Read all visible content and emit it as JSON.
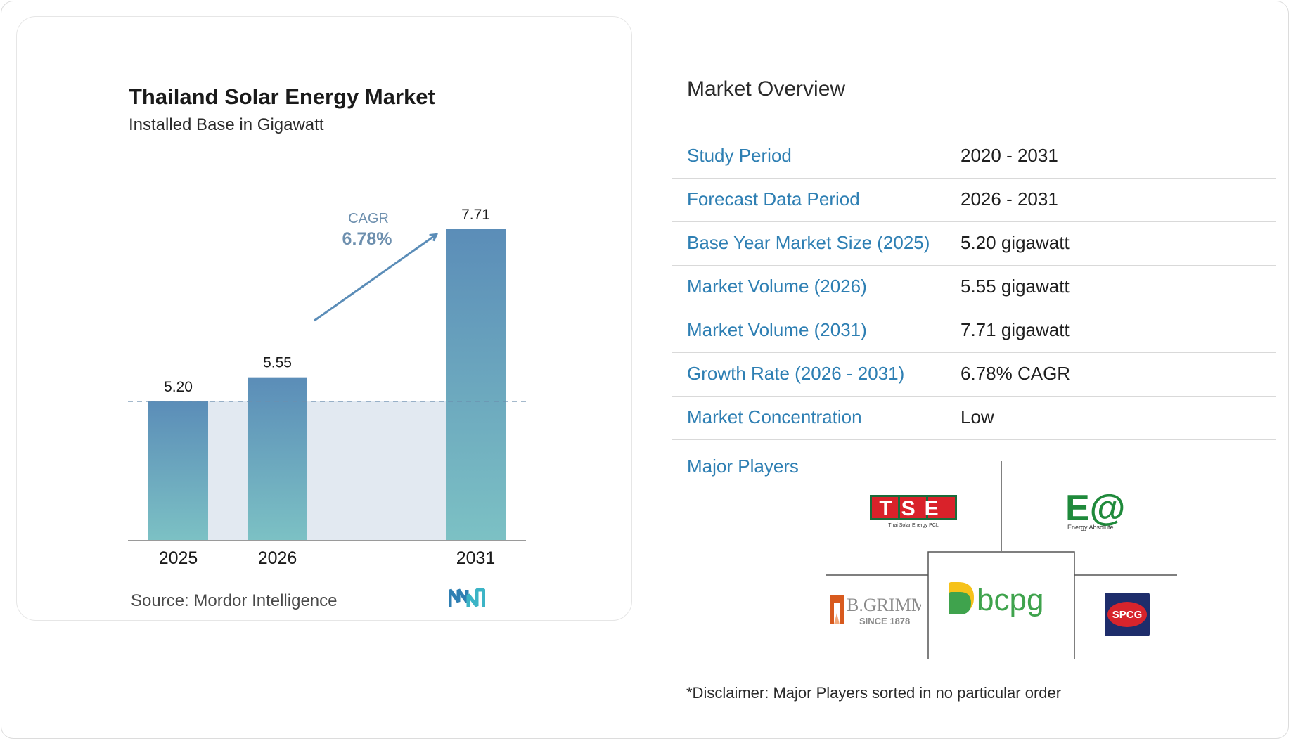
{
  "chart": {
    "title": "Thailand Solar Energy Market",
    "subtitle": "Installed Base in Gigawatt",
    "cagr_label": "CAGR",
    "cagr_value": "6.78%",
    "source": "Source:  Mordor Intelligence"
  },
  "chart_data": {
    "type": "bar",
    "categories": [
      "2025",
      "2026",
      "2031"
    ],
    "values": [
      5.2,
      5.55,
      7.71
    ],
    "value_labels": [
      "5.20",
      "5.55",
      "7.71"
    ],
    "title": "Thailand Solar Energy Market",
    "subtitle": "Installed Base in Gigawatt",
    "ylim": [
      0,
      7.71
    ],
    "grid": false,
    "bar_gradient": {
      "top": "#5b8db8",
      "bottom": "#7cc1c4"
    },
    "band_color": "#e2e9f1",
    "dashed_baseline_color": "#6d8fae",
    "arrow_color": "#5b8db8"
  },
  "overview": {
    "title": "Market Overview",
    "rows": [
      {
        "label": "Study Period",
        "value": "2020 - 2031"
      },
      {
        "label": "Forecast Data Period",
        "value": "2026 - 2031"
      },
      {
        "label": "Base Year Market Size (2025)",
        "value": "5.20 gigawatt"
      },
      {
        "label": "Market Volume (2026)",
        "value": "5.55 gigawatt"
      },
      {
        "label": "Market Volume (2031)",
        "value": "7.71 gigawatt"
      },
      {
        "label": "Growth Rate (2026 - 2031)",
        "value": "6.78% CAGR"
      },
      {
        "label": "Market Concentration",
        "value": "Low"
      }
    ],
    "label_color": "#2e7fb3"
  },
  "players": {
    "label": "Major Players",
    "logos": {
      "tse": {
        "text": "TSE",
        "subtext": "Thai Solar Energy PCL",
        "color": "#d9222a"
      },
      "ea": {
        "text": "E@",
        "subtext": "Energy Absolute",
        "color": "#1f8a3b"
      },
      "bgrimm": {
        "text": "B.GRIMM",
        "subtext": "SINCE 1878",
        "color": "#d85a1e"
      },
      "bcpg": {
        "text": "bcpg",
        "color": "#3fa34d"
      },
      "spcg": {
        "text": "SPCG",
        "color": "#d7242c"
      }
    }
  },
  "disclaimer": "*Disclaimer: Major Players sorted in no particular order"
}
